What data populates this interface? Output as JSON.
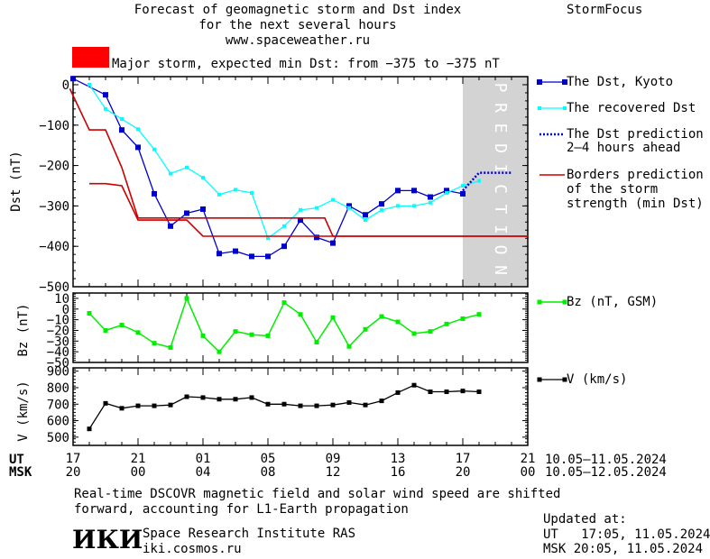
{
  "header": {
    "title_lines": [
      "Forecast of geomagnetic storm and Dst index",
      "for the next several hours",
      "www.spaceweather.ru"
    ],
    "brand": "StormFocus"
  },
  "alert": {
    "color": "#ff0000",
    "text": "Major storm, expected min Dst: from −375 to −375 nT"
  },
  "legend": {
    "dst_kyoto": "The Dst, Kyoto",
    "recovered": "The recovered Dst",
    "prediction": [
      "The Dst prediction",
      "2–4 hours ahead"
    ],
    "borders": [
      "Borders prediction",
      "of the storm",
      "strength (min Dst)"
    ],
    "bz": "Bz (nT, GSM)",
    "v": "V (km/s)"
  },
  "prediction_label": "PREDICTION",
  "time_axis": {
    "ut_label": "UT",
    "msk_label": "MSK",
    "ut_ticks": [
      "17",
      "21",
      "01",
      "05",
      "09",
      "13",
      "17",
      "21"
    ],
    "msk_ticks": [
      "20",
      "00",
      "04",
      "08",
      "12",
      "16",
      "20",
      "00"
    ],
    "ut_range": "10.05–11.05.2024",
    "msk_range": "10.05–12.05.2024"
  },
  "footer": {
    "note_lines": [
      "Real-time DSCOVR magnetic field and solar wind speed are shifted",
      "forward, accounting for L1-Earth propagation"
    ],
    "logo": "ИКИ",
    "institute": "Space Research Institute RAS",
    "site": "iki.cosmos.ru",
    "updated_label": "Updated at:",
    "updated_ut": "UT   17:05, 11.05.2024",
    "updated_msk": "MSK 20:05, 11.05.2024"
  },
  "colors": {
    "dst": "#0000cc",
    "recovered": "#00ffff",
    "prediction": "#0000cc",
    "borders": "#cc0000",
    "bz": "#00ee00",
    "v": "#000000",
    "shade": "#d3d3d3"
  },
  "chart_data": [
    {
      "type": "line",
      "ylabel": "Dst (nT)",
      "ylim": [
        -500,
        20
      ],
      "yticks": [
        0,
        -100,
        -200,
        -300,
        -400,
        -500
      ],
      "ytick_labels": [
        "0",
        "−100",
        "−200",
        "−300",
        "−400",
        "−500"
      ],
      "x_unit": "hours from 17 UT 10.05.2024",
      "xlim": [
        0,
        28
      ],
      "prediction_window": [
        24,
        28
      ],
      "series": [
        {
          "name": "The Dst, Kyoto",
          "x": [
            0,
            2,
            3,
            4,
            5,
            6,
            7,
            8,
            9,
            10,
            11,
            12,
            13,
            14,
            15,
            16,
            17,
            18,
            19,
            20,
            21,
            22,
            23,
            24
          ],
          "y": [
            15,
            -25,
            -112,
            -155,
            -270,
            -350,
            -318,
            -308,
            -418,
            -412,
            -425,
            -425,
            -400,
            -335,
            -378,
            -392,
            -300,
            -322,
            -295,
            -262,
            -262,
            -278,
            -262,
            -270
          ]
        },
        {
          "name": "The recovered Dst",
          "x": [
            1,
            2,
            3,
            4,
            5,
            6,
            7,
            8,
            9,
            10,
            11,
            12,
            13,
            14,
            15,
            16,
            17,
            18,
            19,
            20,
            21,
            22,
            23,
            24,
            25
          ],
          "y": [
            0,
            -60,
            -85,
            -110,
            -160,
            -220,
            -205,
            -230,
            -272,
            -260,
            -268,
            -380,
            -350,
            -310,
            -305,
            -285,
            -305,
            -335,
            -310,
            -300,
            -300,
            -292,
            -268,
            -250,
            -238
          ]
        },
        {
          "name": "The Dst prediction",
          "x": [
            24,
            25,
            26,
            27
          ],
          "y": [
            -262,
            -218,
            -218,
            -218
          ]
        },
        {
          "name": "Borders prediction (upper)",
          "x": [
            -0.2,
            1,
            2,
            3,
            4,
            7.5,
            8,
            15.5,
            16,
            28
          ],
          "y": [
            -10,
            -112,
            -112,
            -205,
            -330,
            -330,
            -330,
            -330,
            -375,
            -375
          ]
        },
        {
          "name": "Borders prediction (lower)",
          "x": [
            1,
            2,
            3,
            4,
            5,
            6,
            7,
            8,
            28
          ],
          "y": [
            -245,
            -245,
            -250,
            -335,
            -335,
            -335,
            -335,
            -375,
            -375
          ]
        }
      ]
    },
    {
      "type": "line",
      "ylabel": "Bz (nT)",
      "ylim": [
        -50,
        15
      ],
      "yticks": [
        10,
        0,
        -10,
        -20,
        -30,
        -40,
        -50
      ],
      "ytick_labels": [
        "10",
        "0",
        "−10",
        "−20",
        "−30",
        "−40",
        "−50"
      ],
      "xlim": [
        0,
        28
      ],
      "series": [
        {
          "name": "Bz (nT, GSM)",
          "x": [
            1,
            2,
            3,
            4,
            5,
            6,
            7,
            8,
            9,
            10,
            11,
            12,
            13,
            14,
            15,
            16,
            17,
            18,
            19,
            20,
            21,
            22,
            23,
            24,
            25
          ],
          "y": [
            -4,
            -20,
            -15,
            -22,
            -32,
            -36,
            10,
            -25,
            -40,
            -21,
            -24,
            -25,
            6,
            -5,
            -31,
            -8,
            -35,
            -19,
            -7,
            -12,
            -23,
            -21,
            -14,
            -9,
            -5
          ]
        }
      ]
    },
    {
      "type": "line",
      "ylabel": "V (km/s)",
      "ylim": [
        450,
        920
      ],
      "yticks": [
        900,
        800,
        700,
        600,
        500
      ],
      "ytick_labels": [
        "900",
        "800",
        "700",
        "600",
        "500"
      ],
      "xlim": [
        0,
        28
      ],
      "series": [
        {
          "name": "V (km/s)",
          "x": [
            1,
            2,
            3,
            4,
            5,
            6,
            7,
            8,
            9,
            10,
            11,
            12,
            13,
            14,
            15,
            16,
            17,
            18,
            19,
            20,
            21,
            22,
            23,
            24,
            25
          ],
          "y": [
            550,
            705,
            675,
            690,
            690,
            695,
            745,
            740,
            730,
            730,
            740,
            700,
            700,
            690,
            690,
            695,
            710,
            695,
            720,
            770,
            815,
            775,
            775,
            780,
            775
          ]
        }
      ]
    }
  ]
}
